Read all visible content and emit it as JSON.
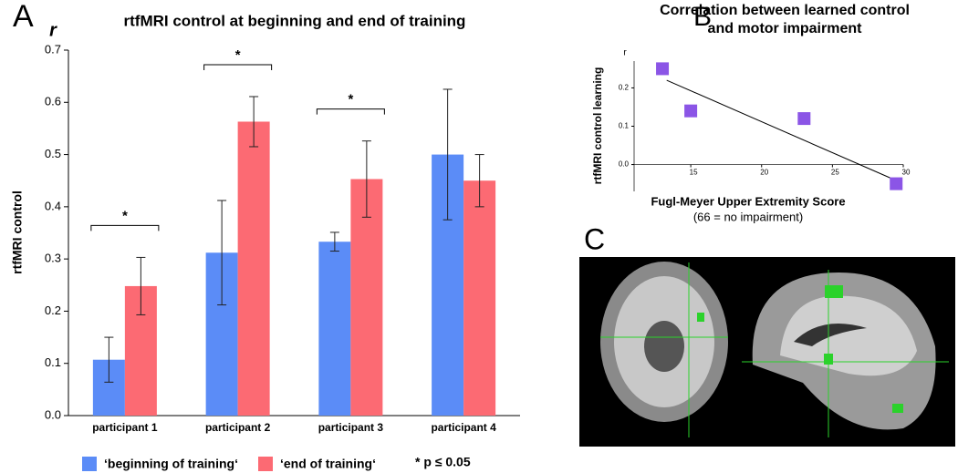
{
  "panel_labels": [
    "A",
    "B",
    "C"
  ],
  "chart_data": [
    {
      "type": "bar",
      "title": "rtfMRI control at beginning and end of training",
      "y_label": "rtfMRI control",
      "y_unit": "r",
      "categories": [
        "participant 1",
        "participant 2",
        "participant 3",
        "participant 4"
      ],
      "series": [
        {
          "name": "‘beginning of training‘",
          "color": "#5b8cf7",
          "values": [
            0.107,
            0.312,
            0.333,
            0.5
          ],
          "errors": [
            0.043,
            0.1,
            0.018,
            0.125
          ]
        },
        {
          "name": "‘end of training‘",
          "color": "#fc6a73",
          "values": [
            0.248,
            0.563,
            0.453,
            0.45
          ],
          "errors": [
            0.055,
            0.048,
            0.073,
            0.05
          ]
        }
      ],
      "significance": [
        "*",
        "*",
        "*",
        null
      ],
      "significance_note": "* p ≤ 0.05",
      "ylim": [
        0,
        0.7
      ],
      "yticks": [
        {
          "value": 0,
          "label": "0.0"
        },
        0.1,
        0.2,
        0.3,
        0.4,
        0.5,
        0.6,
        0.7
      ]
    },
    {
      "type": "scatter",
      "title": [
        "Correlation between learned control",
        "and motor impairment"
      ],
      "x_label": "Fugl-Meyer Upper Extremity Score",
      "x_note": "(66 = no impairment)",
      "y_label": "rtfMRI control learning",
      "y_unit": "r",
      "color": "#8b55e6",
      "x": [
        13,
        15,
        23,
        29.5
      ],
      "values": [
        0.25,
        0.14,
        0.12,
        -0.05
      ],
      "trend_line": {
        "x": [
          13.3,
          29.4
        ],
        "values": [
          0.22,
          -0.04
        ]
      },
      "xlim": [
        11,
        30
      ],
      "xticks": [
        15,
        20,
        25,
        30
      ],
      "ylim": [
        -0.07,
        0.27
      ],
      "yticks": [
        {
          "value": 0,
          "label": "0.0"
        },
        0.1,
        0.2
      ]
    }
  ]
}
